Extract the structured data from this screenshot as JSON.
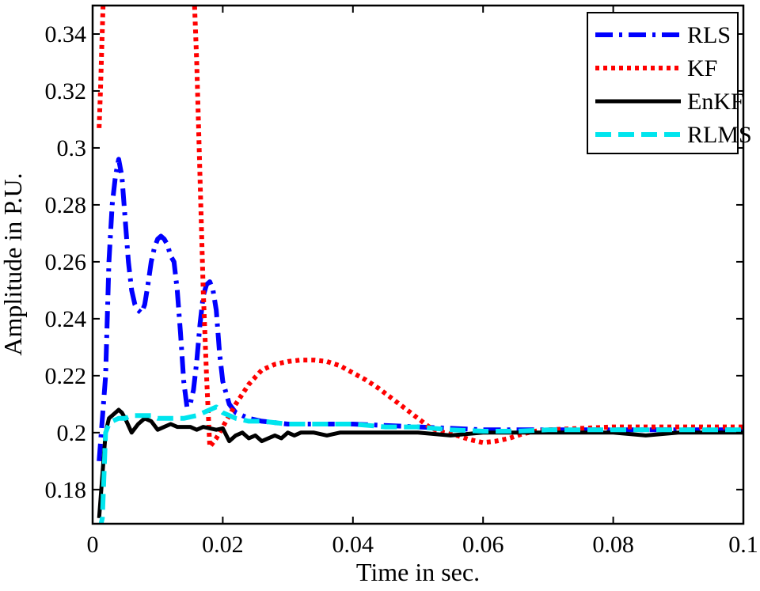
{
  "chart_data": {
    "type": "line",
    "title": "",
    "xlabel": "Time in sec.",
    "ylabel": "Amplitude in P.U.",
    "xlim": [
      0,
      0.1
    ],
    "ylim": [
      0.168,
      0.35
    ],
    "xticks": [
      0,
      0.02,
      0.04,
      0.06,
      0.08,
      0.1
    ],
    "xtick_labels": [
      "0",
      "0.02",
      "0.04",
      "0.06",
      "0.08",
      "0.1"
    ],
    "yticks": [
      0.18,
      0.2,
      0.22,
      0.24,
      0.26,
      0.28,
      0.3,
      0.32,
      0.34
    ],
    "ytick_labels": [
      "0.18",
      "0.2",
      "0.22",
      "0.24",
      "0.26",
      "0.28",
      "0.3",
      "0.32",
      "0.34"
    ],
    "grid": false,
    "legend_position": "top-right",
    "series": [
      {
        "name": "RLS",
        "color": "#0000ff",
        "dash": "dash-dot",
        "x": [
          0.001,
          0.002,
          0.0025,
          0.003,
          0.0035,
          0.004,
          0.0045,
          0.005,
          0.0055,
          0.006,
          0.0065,
          0.007,
          0.0075,
          0.008,
          0.0085,
          0.009,
          0.0095,
          0.01,
          0.0105,
          0.011,
          0.0115,
          0.012,
          0.0125,
          0.013,
          0.0135,
          0.014,
          0.0145,
          0.015,
          0.0155,
          0.016,
          0.0165,
          0.017,
          0.0175,
          0.018,
          0.0185,
          0.019,
          0.0195,
          0.02,
          0.021,
          0.022,
          0.024,
          0.026,
          0.03,
          0.04,
          0.05,
          0.06,
          0.07,
          0.08,
          0.09,
          0.1
        ],
        "y": [
          0.19,
          0.22,
          0.26,
          0.28,
          0.29,
          0.296,
          0.29,
          0.275,
          0.26,
          0.25,
          0.245,
          0.243,
          0.242,
          0.245,
          0.252,
          0.26,
          0.265,
          0.268,
          0.269,
          0.268,
          0.266,
          0.262,
          0.26,
          0.25,
          0.235,
          0.218,
          0.209,
          0.21,
          0.215,
          0.225,
          0.238,
          0.248,
          0.252,
          0.253,
          0.25,
          0.243,
          0.228,
          0.218,
          0.21,
          0.207,
          0.205,
          0.204,
          0.203,
          0.203,
          0.202,
          0.201,
          0.201,
          0.201,
          0.201,
          0.201
        ]
      },
      {
        "name": "KF",
        "color": "#ff0000",
        "dash": "dotted",
        "x": [
          0.001,
          0.0012,
          0.0014,
          0.0016,
          0.0018,
          0.002,
          0.0155,
          0.016,
          0.0165,
          0.017,
          0.0175,
          0.018,
          0.019,
          0.02,
          0.022,
          0.024,
          0.026,
          0.028,
          0.03,
          0.032,
          0.034,
          0.036,
          0.038,
          0.04,
          0.042,
          0.044,
          0.046,
          0.048,
          0.05,
          0.052,
          0.054,
          0.056,
          0.058,
          0.06,
          0.062,
          0.064,
          0.066,
          0.068,
          0.07,
          0.075,
          0.08,
          0.085,
          0.09,
          0.095,
          0.1
        ],
        "y": [
          0.307,
          0.32,
          0.335,
          0.35,
          0.36,
          0.37,
          0.36,
          0.33,
          0.29,
          0.25,
          0.22,
          0.195,
          0.198,
          0.202,
          0.21,
          0.217,
          0.222,
          0.224,
          0.225,
          0.2255,
          0.2255,
          0.225,
          0.2235,
          0.221,
          0.2185,
          0.2155,
          0.212,
          0.2085,
          0.205,
          0.2015,
          0.2,
          0.199,
          0.1975,
          0.1965,
          0.197,
          0.198,
          0.1995,
          0.2005,
          0.201,
          0.2015,
          0.202,
          0.202,
          0.202,
          0.202,
          0.202
        ]
      },
      {
        "name": "EnKF",
        "color": "#000000",
        "dash": "solid",
        "x": [
          0.001,
          0.0015,
          0.002,
          0.0025,
          0.003,
          0.0035,
          0.004,
          0.0045,
          0.005,
          0.006,
          0.007,
          0.008,
          0.009,
          0.01,
          0.011,
          0.012,
          0.013,
          0.014,
          0.015,
          0.016,
          0.017,
          0.018,
          0.019,
          0.02,
          0.021,
          0.022,
          0.023,
          0.024,
          0.025,
          0.026,
          0.027,
          0.028,
          0.029,
          0.03,
          0.031,
          0.032,
          0.034,
          0.036,
          0.038,
          0.04,
          0.045,
          0.05,
          0.055,
          0.06,
          0.065,
          0.07,
          0.075,
          0.08,
          0.085,
          0.09,
          0.095,
          0.1
        ],
        "y": [
          0.17,
          0.185,
          0.2,
          0.205,
          0.206,
          0.207,
          0.208,
          0.207,
          0.205,
          0.2,
          0.203,
          0.205,
          0.204,
          0.201,
          0.202,
          0.203,
          0.202,
          0.202,
          0.202,
          0.201,
          0.202,
          0.2015,
          0.201,
          0.2015,
          0.197,
          0.199,
          0.2,
          0.198,
          0.199,
          0.197,
          0.198,
          0.199,
          0.198,
          0.2,
          0.199,
          0.2,
          0.2,
          0.199,
          0.2,
          0.2,
          0.2,
          0.2,
          0.199,
          0.2,
          0.2,
          0.2,
          0.2,
          0.2,
          0.199,
          0.2,
          0.2,
          0.2
        ]
      },
      {
        "name": "RLMS",
        "color": "#00e5ee",
        "dash": "dashed",
        "x": [
          0.001,
          0.0015,
          0.002,
          0.0025,
          0.003,
          0.004,
          0.005,
          0.006,
          0.007,
          0.008,
          0.009,
          0.01,
          0.012,
          0.014,
          0.016,
          0.017,
          0.018,
          0.019,
          0.02,
          0.022,
          0.024,
          0.026,
          0.03,
          0.035,
          0.04,
          0.045,
          0.05,
          0.055,
          0.06,
          0.065,
          0.07,
          0.08,
          0.09,
          0.1
        ],
        "y": [
          0.165,
          0.17,
          0.2,
          0.203,
          0.204,
          0.205,
          0.205,
          0.206,
          0.206,
          0.206,
          0.206,
          0.205,
          0.205,
          0.205,
          0.206,
          0.207,
          0.208,
          0.209,
          0.207,
          0.205,
          0.204,
          0.204,
          0.203,
          0.203,
          0.203,
          0.202,
          0.202,
          0.201,
          0.2005,
          0.2005,
          0.201,
          0.201,
          0.201,
          0.201
        ]
      }
    ]
  }
}
